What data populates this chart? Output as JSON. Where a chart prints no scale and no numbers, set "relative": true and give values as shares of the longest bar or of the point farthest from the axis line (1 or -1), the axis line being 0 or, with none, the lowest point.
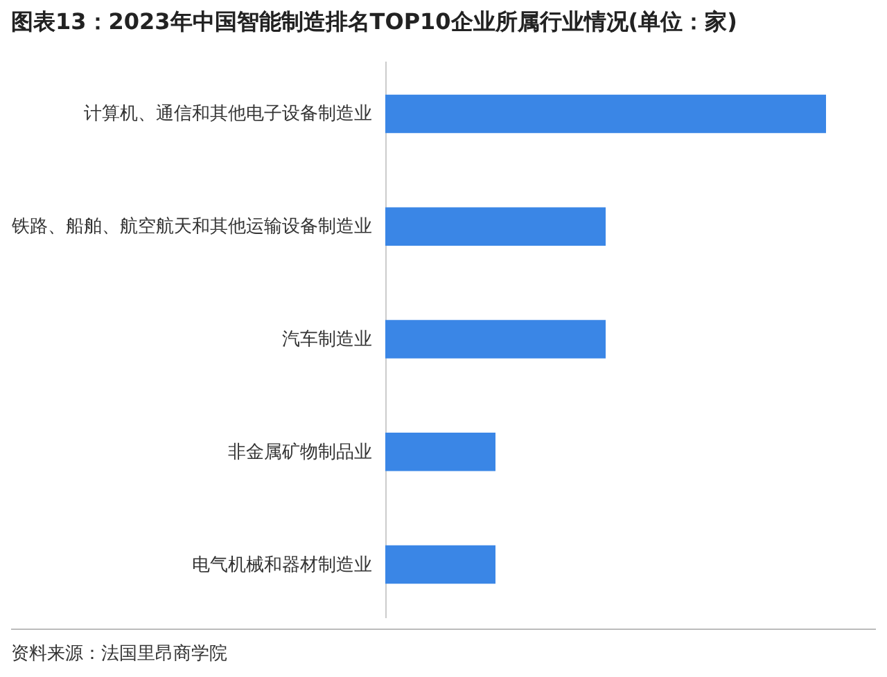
{
  "chart_data": {
    "type": "bar",
    "orientation": "horizontal",
    "relative": true,
    "title": "图表13：2023年中国智能制造排名TOP10企业所属行业情况(单位：家)",
    "categories": [
      "计算机、通信和其他电子设备制造业",
      "铁路、船舶、航空航天和其他运输设备制造业",
      "汽车制造业",
      "非金属矿物制品业",
      "电气机械和器材制造业"
    ],
    "values": [
      1,
      0.5,
      0.5,
      0.25,
      0.25
    ],
    "color": "#3a86e6",
    "annotations": [
      "资料来源：法国里昂商学院"
    ]
  }
}
